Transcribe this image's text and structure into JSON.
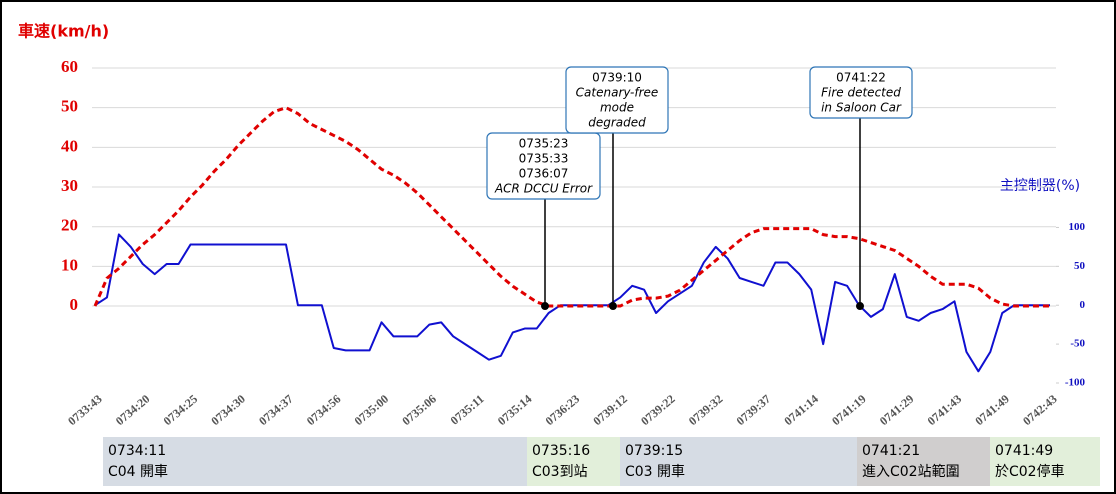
{
  "chart_data": {
    "type": "line",
    "y_label": "車速(km/h)",
    "y2_label": "主控制器(%)",
    "categories": [
      "0733:43",
      null,
      null,
      null,
      "0734:20",
      null,
      null,
      null,
      "0734:25",
      null,
      null,
      null,
      "0734:30",
      null,
      null,
      null,
      "0734:37",
      null,
      null,
      null,
      "0734:56",
      null,
      null,
      null,
      "0735:00",
      null,
      null,
      null,
      "0735:06",
      null,
      null,
      null,
      "0735:11",
      null,
      null,
      null,
      "0735:14",
      null,
      null,
      null,
      "0736:23",
      null,
      null,
      null,
      "0739:12",
      null,
      null,
      null,
      "0739:22",
      null,
      null,
      null,
      "0739:32",
      null,
      null,
      null,
      "0739:37",
      null,
      null,
      null,
      "0741:14",
      null,
      null,
      null,
      "0741:19",
      null,
      null,
      null,
      "0741:29",
      null,
      null,
      null,
      "0741:43",
      null,
      null,
      null,
      "0741:49",
      null,
      null,
      null,
      "0742:43"
    ],
    "ylim": [
      -19.4,
      60
    ],
    "yticks": [
      0,
      10,
      20,
      30,
      40,
      50,
      60
    ],
    "y2lim": [
      -100,
      305
    ],
    "y2ticks": [
      -100,
      -50,
      0,
      50,
      100
    ],
    "grid": true,
    "series": [
      {
        "name": "車速",
        "color": "#e00000",
        "dash": true,
        "values": [
          0,
          7,
          9.5,
          12.5,
          15.5,
          18,
          21,
          24,
          27.5,
          30.5,
          34,
          37,
          40.5,
          43.5,
          46.5,
          49,
          50,
          48.5,
          46,
          44.5,
          43,
          41.5,
          39.5,
          37,
          34.5,
          33,
          31,
          28.5,
          25.5,
          22.5,
          19.5,
          16.5,
          13.5,
          10.5,
          7.5,
          5,
          3,
          1,
          0,
          0,
          0,
          0,
          0,
          0,
          0,
          1.5,
          2,
          2,
          2.5,
          4,
          6.5,
          9,
          11.5,
          14,
          16.5,
          18.5,
          19.5,
          19.5,
          19.5,
          19.5,
          19.5,
          18,
          17.5,
          17.5,
          17,
          16,
          15,
          14,
          12,
          10,
          7.5,
          5.5,
          5.5,
          5.5,
          4.5,
          2,
          0.5,
          0,
          0,
          0,
          0
        ]
      },
      {
        "name": "主控制器",
        "color": "#1010d0",
        "axis": "y2",
        "values": [
          0,
          10,
          91,
          75,
          53,
          40,
          53,
          53,
          78,
          78,
          78,
          78,
          78,
          78,
          78,
          78,
          78,
          0,
          0,
          0,
          -55,
          -58,
          -58,
          -58,
          -22,
          -40,
          -40,
          -40,
          -25,
          -22,
          -40,
          -50,
          -60,
          -70,
          -65,
          -35,
          -30,
          -30,
          -10,
          0,
          0,
          0,
          0,
          0,
          10,
          25,
          20,
          -10,
          5,
          15,
          25,
          55,
          75,
          60,
          35,
          30,
          25,
          55,
          55,
          40,
          20,
          -50,
          30,
          25,
          0,
          -15,
          -5,
          40,
          -15,
          -20,
          -10,
          -5,
          5,
          -60,
          -85,
          -60,
          -10,
          0,
          0,
          0,
          0
        ]
      }
    ],
    "annotations": [
      {
        "lines": [
          "0735:23",
          "0735:33",
          "0736:07",
          "ACR DCCU Error"
        ]
      },
      {
        "lines": [
          "0739:10",
          "Catenary-free",
          "mode",
          "degraded"
        ]
      },
      {
        "lines": [
          "0741:22",
          "Fire detected",
          "in Saloon Car"
        ]
      }
    ]
  },
  "timeline": [
    {
      "time": "0734:11",
      "label": "C04 開車"
    },
    {
      "time": "0735:16",
      "label": "C03到站"
    },
    {
      "time": "0739:15",
      "label": "C03 開車"
    },
    {
      "time": "0741:21",
      "label": "進入C02站範圍"
    },
    {
      "time": "0741:49",
      "label": "於C02停車"
    }
  ]
}
